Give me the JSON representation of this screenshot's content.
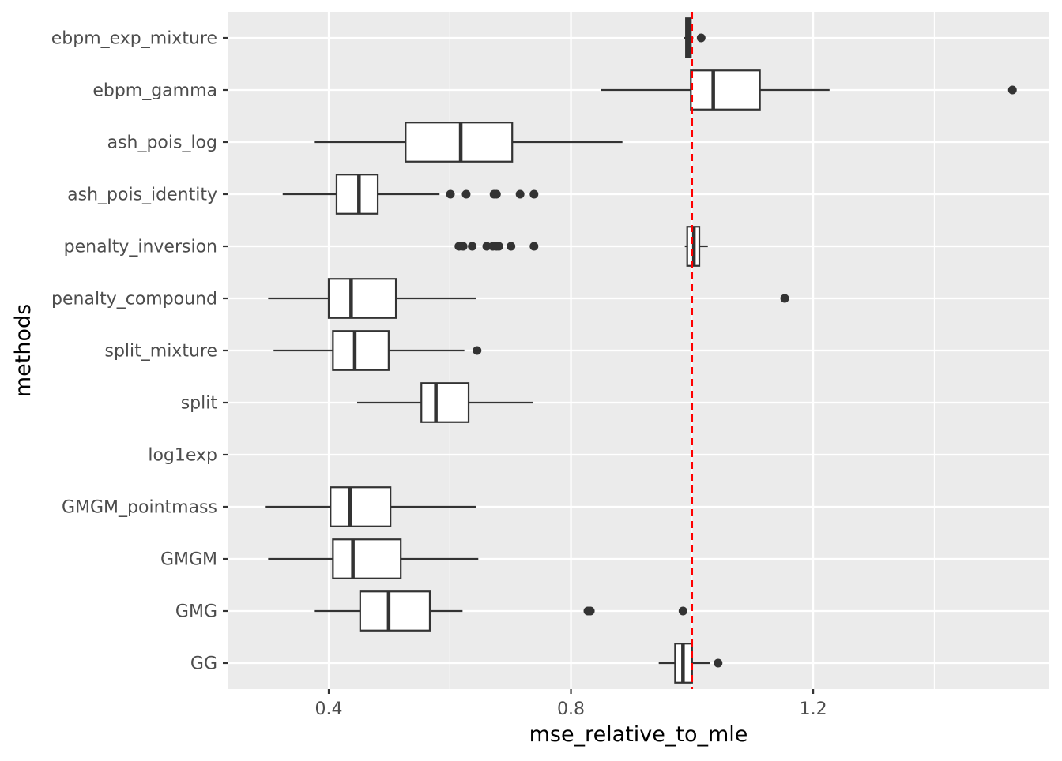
{
  "chart_data": {
    "type": "boxplot",
    "orientation": "horizontal",
    "title": "",
    "xlabel": "mse_relative_to_mle",
    "ylabel": "methods",
    "xlim": [
      0.233,
      1.59
    ],
    "xticks": [
      0.4,
      0.8,
      1.2
    ],
    "xtick_labels": [
      "0.4",
      "0.8",
      "1.2"
    ],
    "minor_gridlines": [
      0.6,
      1.0,
      1.4
    ],
    "grid": true,
    "reference_line": {
      "x": 1.0,
      "style": "dashed",
      "color": "#ff0000"
    },
    "colors": {
      "panel": "#ebebeb",
      "grid": "#ffffff",
      "box_fill": "#ffffff",
      "box_stroke": "#333333"
    },
    "categories": [
      "ebpm_exp_mixture",
      "ebpm_gamma",
      "ash_pois_log",
      "ash_pois_identity",
      "penalty_inversion",
      "penalty_compound",
      "split_mixture",
      "split",
      "log1exp",
      "GMGM_pointmass",
      "GMGM",
      "GMG",
      "GG"
    ],
    "boxes": [
      {
        "method": "ebpm_exp_mixture",
        "whisker_low": 0.986,
        "q1": 0.99,
        "median": 0.994,
        "q3": 0.998,
        "whisker_high": 1.002,
        "outliers": [
          1.015
        ]
      },
      {
        "method": "ebpm_gamma",
        "whisker_low": 0.849,
        "q1": 0.998,
        "median": 1.035,
        "q3": 1.112,
        "whisker_high": 1.227,
        "outliers": [
          1.529
        ]
      },
      {
        "method": "ash_pois_log",
        "whisker_low": 0.377,
        "q1": 0.527,
        "median": 0.618,
        "q3": 0.703,
        "whisker_high": 0.885,
        "outliers": []
      },
      {
        "method": "ash_pois_identity",
        "whisker_low": 0.324,
        "q1": 0.413,
        "median": 0.45,
        "q3": 0.481,
        "whisker_high": 0.583,
        "outliers": [
          0.601,
          0.627,
          0.673,
          0.677,
          0.716,
          0.739
        ]
      },
      {
        "method": "penalty_inversion",
        "whisker_low": 0.988,
        "q1": 0.992,
        "median": 1.003,
        "q3": 1.012,
        "whisker_high": 1.026,
        "outliers": [
          0.615,
          0.622,
          0.637,
          0.661,
          0.671,
          0.677,
          0.681,
          0.701,
          0.739
        ]
      },
      {
        "method": "penalty_compound",
        "whisker_low": 0.3,
        "q1": 0.4,
        "median": 0.437,
        "q3": 0.511,
        "whisker_high": 0.643,
        "outliers": [
          1.153
        ]
      },
      {
        "method": "split_mixture",
        "whisker_low": 0.309,
        "q1": 0.407,
        "median": 0.443,
        "q3": 0.499,
        "whisker_high": 0.624,
        "outliers": [
          0.645
        ]
      },
      {
        "method": "split",
        "whisker_low": 0.447,
        "q1": 0.553,
        "median": 0.577,
        "q3": 0.631,
        "whisker_high": 0.737,
        "outliers": []
      },
      {
        "method": "log1exp",
        "whisker_low": null,
        "q1": null,
        "median": null,
        "q3": null,
        "whisker_high": null,
        "outliers": []
      },
      {
        "method": "GMGM_pointmass",
        "whisker_low": 0.296,
        "q1": 0.403,
        "median": 0.435,
        "q3": 0.502,
        "whisker_high": 0.643,
        "outliers": []
      },
      {
        "method": "GMGM",
        "whisker_low": 0.3,
        "q1": 0.407,
        "median": 0.44,
        "q3": 0.519,
        "whisker_high": 0.647,
        "outliers": []
      },
      {
        "method": "GMG",
        "whisker_low": 0.377,
        "q1": 0.452,
        "median": 0.499,
        "q3": 0.567,
        "whisker_high": 0.621,
        "outliers": [
          0.828,
          0.832,
          0.985
        ]
      },
      {
        "method": "GG",
        "whisker_low": 0.945,
        "q1": 0.972,
        "median": 0.985,
        "q3": 1.0,
        "whisker_high": 1.029,
        "outliers": [
          1.043
        ]
      }
    ]
  }
}
